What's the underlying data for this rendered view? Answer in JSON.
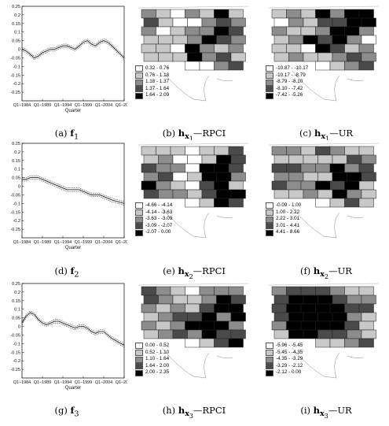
{
  "chart_data": [
    {
      "type": "line",
      "panel": "a",
      "series": [
        {
          "values": [
            0.0,
            -0.01,
            -0.03,
            -0.05,
            -0.04,
            -0.02,
            -0.01,
            0.0,
            0.0,
            0.01,
            0.02,
            0.02,
            0.01,
            0.0,
            0.02,
            0.04,
            0.05,
            0.03,
            0.02,
            0.04,
            0.05,
            0.04,
            0.02,
            -0.05
          ]
        }
      ],
      "x": [
        1984,
        1985,
        1986,
        1987,
        1988,
        1989,
        1990,
        1991,
        1992,
        1993,
        1994,
        1995,
        1996,
        1997,
        1998,
        1999,
        2000,
        2001,
        2002,
        2003,
        2004,
        2005,
        2006,
        2009
      ],
      "yticks": [
        "0.25",
        "0.2",
        "0.15",
        "0.1",
        "0.05",
        "0",
        "-0.05",
        "-0.1",
        "-0.15",
        "-0.2",
        "-0.25"
      ],
      "xticks": [
        "Q1−1984",
        "Q1−1989",
        "Q1−1994",
        "Q1−1999",
        "Q1−2004",
        "Q1−2009"
      ],
      "xlabel": "Quarter",
      "ylim": [
        -0.3,
        0.25
      ]
    },
    {
      "type": "line",
      "panel": "d",
      "series": [
        {
          "values": [
            0.04,
            0.04,
            0.05,
            0.05,
            0.05,
            0.04,
            0.03,
            0.02,
            0.01,
            0.0,
            -0.01,
            -0.02,
            -0.02,
            -0.02,
            -0.02,
            -0.03,
            -0.04,
            -0.05,
            -0.05,
            -0.05,
            -0.06,
            -0.07,
            -0.08,
            -0.1
          ]
        }
      ],
      "x": [
        1984,
        1985,
        1986,
        1987,
        1988,
        1989,
        1990,
        1991,
        1992,
        1993,
        1994,
        1995,
        1996,
        1997,
        1998,
        1999,
        2000,
        2001,
        2002,
        2003,
        2004,
        2005,
        2006,
        2009
      ],
      "yticks": [
        "0.25",
        "0.2",
        "0.15",
        "0.1",
        "0.05",
        "0",
        "-0.05",
        "-0.1",
        "-0.15",
        "-0.2",
        "-0.25"
      ],
      "xticks": [
        "Q1−1984",
        "Q1−1989",
        "Q1−1994",
        "Q1−1999",
        "Q1−2004",
        "Q1−2009"
      ],
      "xlabel": "Quarter",
      "ylim": [
        -0.3,
        0.25
      ]
    },
    {
      "type": "line",
      "panel": "g",
      "series": [
        {
          "values": [
            0.02,
            0.06,
            0.08,
            0.07,
            0.04,
            0.02,
            0.01,
            0.02,
            0.03,
            0.03,
            0.02,
            0.01,
            0.0,
            -0.01,
            0.0,
            0.0,
            -0.01,
            -0.03,
            -0.04,
            -0.03,
            -0.03,
            -0.05,
            -0.07,
            -0.11
          ]
        }
      ],
      "x": [
        1984,
        1985,
        1986,
        1987,
        1988,
        1989,
        1990,
        1991,
        1992,
        1993,
        1994,
        1995,
        1996,
        1997,
        1998,
        1999,
        2000,
        2001,
        2002,
        2003,
        2004,
        2005,
        2006,
        2009
      ],
      "yticks": [
        "0.25",
        "0.2",
        "0.15",
        "0.1",
        "0.05",
        "0",
        "-0.05",
        "-0.1",
        "-0.15",
        "-0.2",
        "-0.25"
      ],
      "xticks": [
        "Q1−1984",
        "Q1−1989",
        "Q1−1994",
        "Q1−1999",
        "Q1−2004",
        "Q1−2009"
      ],
      "xlabel": "Quarter",
      "ylim": [
        -0.3,
        0.25
      ]
    }
  ],
  "captions": {
    "a": {
      "prefix": "(a) ",
      "bold": "f",
      "sub": "1",
      "suffix": ""
    },
    "b": {
      "prefix": "(b) ",
      "bold": "h",
      "sub": "x",
      "subsub": "1",
      "suffix": "—RPCI"
    },
    "c": {
      "prefix": "(c) ",
      "bold": "h",
      "sub": "x",
      "subsub": "1",
      "suffix": "—UR"
    },
    "d": {
      "prefix": "(d) ",
      "bold": "f",
      "sub": "2",
      "suffix": ""
    },
    "e": {
      "prefix": "(e) ",
      "bold": "h",
      "sub": "x",
      "subsub": "2",
      "suffix": "—RPCI"
    },
    "f": {
      "prefix": "(f) ",
      "bold": "h",
      "sub": "x",
      "subsub": "2",
      "suffix": "—UR"
    },
    "g": {
      "prefix": "(g) ",
      "bold": "f",
      "sub": "3",
      "suffix": ""
    },
    "h": {
      "prefix": "(h) ",
      "bold": "h",
      "sub": "x",
      "subsub": "3",
      "suffix": "—RPCI"
    },
    "i": {
      "prefix": "(i) ",
      "bold": "h",
      "sub": "x",
      "subsub": "3",
      "suffix": "—UR"
    }
  },
  "maps": {
    "b": {
      "legend": [
        "0.32 - 0.76",
        "0.76 - 1.18",
        "1.18 - 1.37",
        "1.37 - 1.64",
        "1.64 - 2.09"
      ]
    },
    "c": {
      "legend": [
        "-10.87 - -10.17",
        "-10.17 - -8.79",
        "-8.79 - -8.10",
        "-8.10 - -7.42",
        "-7.42 - -5.26"
      ]
    },
    "e": {
      "legend": [
        "-4.66 - -4.14",
        "-4.14 - -3.63",
        "-3.63 - -3.09",
        "-3.09 - -2.07",
        "-2.07 - 0.00"
      ]
    },
    "f": {
      "legend": [
        "-0.09 - 1.00",
        "1.00 - 2.22",
        "2.22 - 3.01",
        "3.01 - 4.41",
        "4.41 - 8.66"
      ]
    },
    "h": {
      "legend": [
        "0.00 - 0.52",
        "0.52 - 1.10",
        "1.10 - 1.64",
        "1.64 - 2.00",
        "2.00 - 2.35"
      ]
    },
    "i": {
      "legend": [
        "-5.96 - -5.45",
        "-5.45 - -4.35",
        "-4.35 - -3.29",
        "-3.29 - -2.12",
        "-2.12 - 0.00"
      ]
    }
  },
  "legend_colors": [
    "#ffffff",
    "#c8c8c8",
    "#8c8c8c",
    "#4a4a4a",
    "#000000"
  ]
}
